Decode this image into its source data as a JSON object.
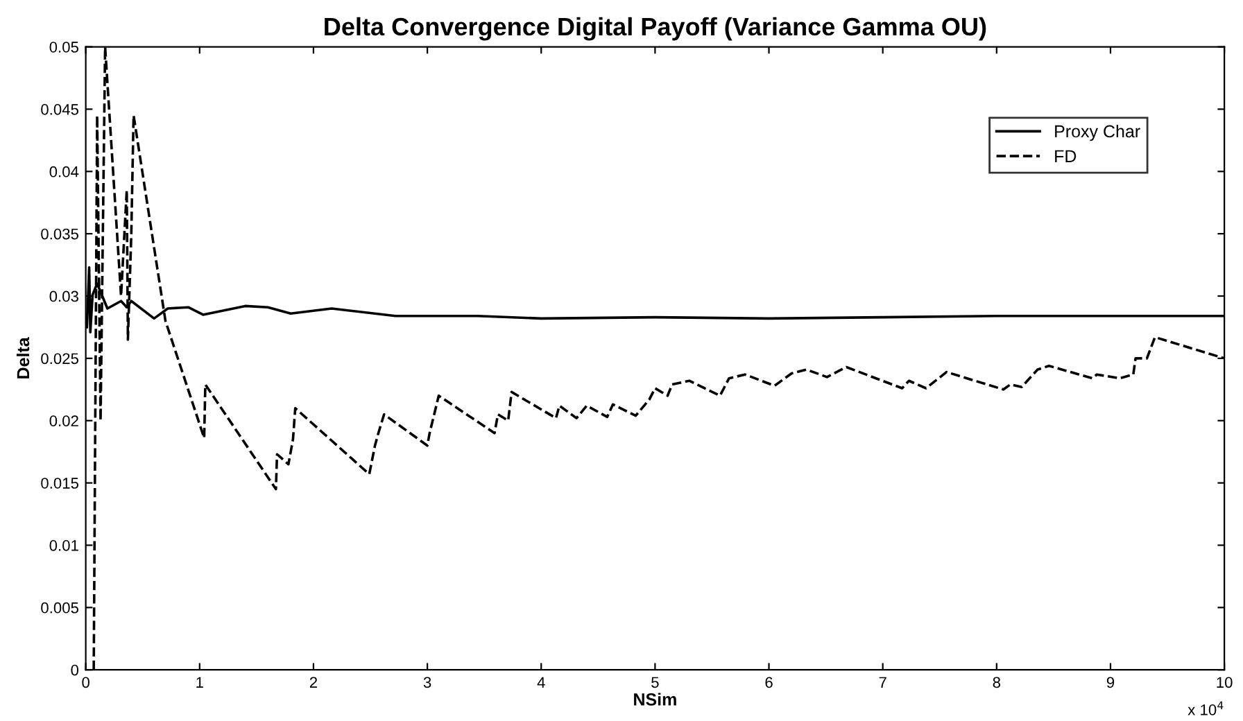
{
  "chart_data": {
    "type": "line",
    "title": "Delta Convergence Digital Payoff (Variance Gamma OU)",
    "xlabel": "NSim",
    "ylabel": "Delta",
    "annotations": [
      "x 10$^{4}$"
    ],
    "series": [
      {
        "name": "Proxy Char",
        "color": "#000000",
        "line_style": "solid",
        "x": [
          0.01,
          0.03,
          0.04,
          0.06,
          0.1,
          0.19,
          0.31,
          0.36,
          0.4,
          0.6,
          0.72,
          0.9,
          1.03,
          1.4,
          1.6,
          1.8,
          2.16,
          2.72,
          3.44,
          4.0,
          5.0,
          6.0,
          7.0,
          8.0,
          9.0,
          10.0
        ],
        "values": [
          0.0275,
          0.0323,
          0.0271,
          0.0301,
          0.031,
          0.029,
          0.0296,
          0.0291,
          0.0296,
          0.0282,
          0.029,
          0.0291,
          0.0285,
          0.0292,
          0.0291,
          0.0286,
          0.029,
          0.0284,
          0.0284,
          0.0282,
          0.0283,
          0.0282,
          0.0283,
          0.0284,
          0.0284,
          0.0284
        ]
      },
      {
        "name": "FD",
        "color": "#000000",
        "line_style": "dashed",
        "x": [
          0.07,
          0.1,
          0.13,
          0.17,
          0.31,
          0.36,
          0.37,
          0.4,
          0.42,
          0.7,
          1.04,
          1.05,
          1.67,
          1.68,
          1.78,
          1.82,
          1.84,
          2.49,
          2.54,
          2.57,
          2.62,
          3.0,
          3.02,
          3.1,
          3.59,
          3.62,
          3.71,
          3.74,
          4.13,
          4.16,
          4.31,
          4.4,
          4.58,
          4.63,
          4.83,
          4.95,
          5.0,
          5.11,
          5.15,
          5.3,
          5.57,
          5.65,
          5.79,
          6.05,
          6.2,
          6.33,
          6.51,
          6.68,
          7.17,
          7.23,
          7.38,
          7.56,
          8.06,
          8.12,
          8.22,
          8.36,
          8.46,
          8.84,
          8.88,
          9.08,
          9.2,
          9.22,
          9.32,
          9.39,
          10.0
        ],
        "values": [
          0.0,
          0.0445,
          0.02,
          0.05,
          0.03,
          0.0385,
          0.0265,
          0.035,
          0.0445,
          0.028,
          0.0186,
          0.0229,
          0.0145,
          0.0173,
          0.0165,
          0.0185,
          0.021,
          0.0157,
          0.018,
          0.019,
          0.0205,
          0.018,
          0.019,
          0.022,
          0.019,
          0.0205,
          0.02,
          0.0223,
          0.0202,
          0.0212,
          0.0202,
          0.0212,
          0.0203,
          0.0213,
          0.0204,
          0.0217,
          0.0226,
          0.022,
          0.0229,
          0.0232,
          0.022,
          0.0234,
          0.0237,
          0.0228,
          0.0238,
          0.0241,
          0.0235,
          0.0243,
          0.0226,
          0.0232,
          0.0226,
          0.0239,
          0.0225,
          0.0229,
          0.0227,
          0.0241,
          0.0244,
          0.0234,
          0.0237,
          0.0234,
          0.0237,
          0.025,
          0.025,
          0.0267,
          0.025
        ]
      }
    ],
    "xlim": [
      0,
      10
    ],
    "xticks": [
      0,
      1,
      2,
      3,
      4,
      5,
      6,
      7,
      8,
      9,
      10
    ],
    "ylim": [
      0,
      0.05
    ],
    "yticks": [
      0,
      0.005,
      0.01,
      0.015,
      0.02,
      0.025,
      0.03,
      0.035,
      0.04,
      0.045,
      0.05
    ],
    "grid": false,
    "legend": "top right"
  }
}
